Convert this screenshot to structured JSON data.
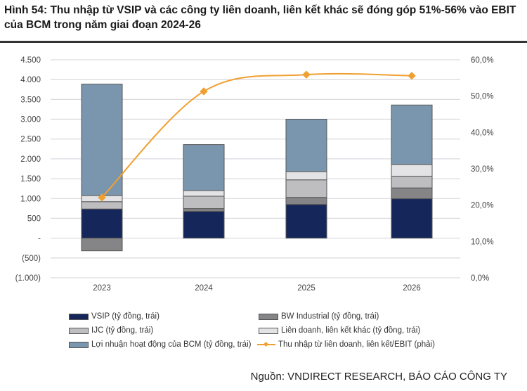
{
  "title": "Hình 54: Thu nhập từ VSIP và các công ty liên doanh, liên kết khác sẽ đóng góp 51%-56% vào EBIT của BCM trong năm giai đoạn 2024-26",
  "source": "Nguồn: VNDIRECT RESEARCH, BÁO CÁO CÔNG TY",
  "chart_data": {
    "type": "bar",
    "stacked": true,
    "categories": [
      "2023",
      "2024",
      "2025",
      "2026"
    ],
    "series": [
      {
        "name": "VSIP (tỷ đồng, trái)",
        "values": [
          735,
          675,
          850,
          995
        ],
        "color": "#15275A",
        "axis": "left"
      },
      {
        "name": "BW Industrial (tỷ đồng, trái)",
        "values": [
          -320,
          70,
          177,
          272
        ],
        "color": "#858588",
        "axis": "left"
      },
      {
        "name": "IJC (tỷ đồng, trái)",
        "values": [
          185,
          313,
          444,
          296
        ],
        "color": "#BEBDC0",
        "axis": "left"
      },
      {
        "name": "Liên doanh, liên kết khác (tỷ đồng, trái)",
        "values": [
          155,
          142,
          207,
          296
        ],
        "color": "#E3E2E5",
        "axis": "left"
      },
      {
        "name": "Lợi nhuận hoạt động của BCM (tỷ đồng, trái)",
        "values": [
          2810,
          1160,
          1323,
          1500
        ],
        "color": "#7A96AE",
        "axis": "left"
      },
      {
        "name": "Thu nhập từ liên doanh, liên kết/EBIT (phải)",
        "type": "line",
        "values": [
          22.1,
          51.3,
          55.9,
          55.6
        ],
        "color": "#F0A030",
        "axis": "right"
      }
    ],
    "left_axis": {
      "ylim": [
        -1000,
        4500
      ],
      "ticks": [
        "(1.000)",
        "(500)",
        "-",
        "500",
        "1.000",
        "1.500",
        "2.000",
        "2.500",
        "3.000",
        "3.500",
        "4.000",
        "4.500"
      ]
    },
    "right_axis": {
      "ylim": [
        0,
        60
      ],
      "ticks": [
        "0,0%",
        "10,0%",
        "20,0%",
        "30,0%",
        "40,0%",
        "50,0%",
        "60,0%"
      ]
    },
    "grid": true,
    "legend_placement": "bottom"
  }
}
